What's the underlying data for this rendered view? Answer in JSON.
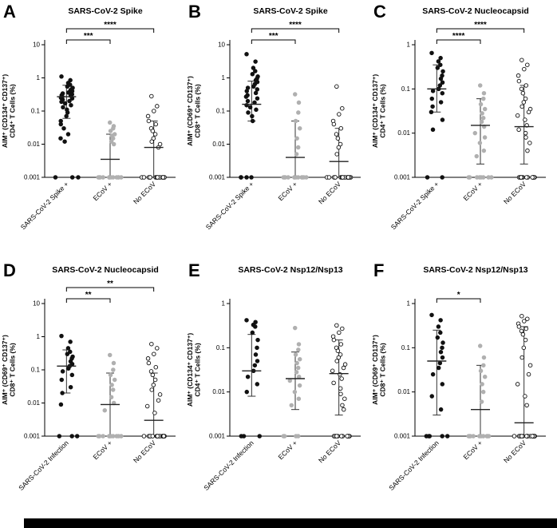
{
  "layout": {
    "background": "#ffffff"
  },
  "marker_colors": {
    "black": "#111111",
    "gray": "#b0b0b0",
    "white": "#ffffff"
  },
  "chart_data": [
    {
      "panel_label": "A",
      "title": "SARS-CoV-2 Spike",
      "type": "scatter",
      "yscale": "log",
      "ylim": [
        0.001,
        10
      ],
      "yticks": [
        0.001,
        0.01,
        0.1,
        1,
        10
      ],
      "ylabel_line1": "AIM⁺ (CD134⁺ CD137⁺)",
      "ylabel_line2": "CD4⁺ T Cells (%)",
      "groups": [
        {
          "label": "SARS-CoV-2 Spike +",
          "marker": "black",
          "median": 0.27,
          "lo": 0.06,
          "hi": 0.6,
          "values": [
            1.1,
            0.85,
            0.7,
            0.62,
            0.55,
            0.5,
            0.46,
            0.43,
            0.4,
            0.38,
            0.36,
            0.34,
            0.32,
            0.3,
            0.29,
            0.27,
            0.25,
            0.24,
            0.22,
            0.2,
            0.19,
            0.17,
            0.15,
            0.13,
            0.11,
            0.09,
            0.07,
            0.05,
            0.04,
            0.03,
            0.02,
            0.015,
            0.012,
            0.001,
            0.001,
            0.001
          ]
        },
        {
          "label": "ECoV +",
          "marker": "gray",
          "median": 0.0035,
          "lo": 0.001,
          "hi": 0.02,
          "values": [
            0.045,
            0.035,
            0.03,
            0.025,
            0.02,
            0.018,
            0.015,
            0.012,
            0.01,
            0.001,
            0.001,
            0.001,
            0.001,
            0.001,
            0.001,
            0.001,
            0.001,
            0.001,
            0.001,
            0.001,
            0.001
          ]
        },
        {
          "label": "No ECoV",
          "marker": "open",
          "median": 0.008,
          "lo": 0.001,
          "hi": 0.05,
          "values": [
            0.28,
            0.14,
            0.1,
            0.07,
            0.05,
            0.04,
            0.03,
            0.025,
            0.02,
            0.015,
            0.012,
            0.01,
            0.008,
            0.001,
            0.001,
            0.001,
            0.001,
            0.001,
            0.001,
            0.001,
            0.001,
            0.001,
            0.001,
            0.001,
            0.001,
            0.001,
            0.001,
            0.001,
            0.001
          ]
        }
      ],
      "significance": [
        {
          "from": 0,
          "to": 1,
          "label": "***"
        },
        {
          "from": 0,
          "to": 2,
          "label": "****"
        }
      ]
    },
    {
      "panel_label": "B",
      "title": "SARS-CoV-2 Spike",
      "type": "scatter",
      "yscale": "log",
      "ylim": [
        0.001,
        10
      ],
      "yticks": [
        0.001,
        0.01,
        0.1,
        1,
        10
      ],
      "ylabel_line1": "AIM⁺ (CD69⁺ CD137⁺)",
      "ylabel_line2": "CD8⁺ T Cells (%)",
      "groups": [
        {
          "label": "SARS-CoV-2 Spike +",
          "marker": "black",
          "median": 0.16,
          "lo": 0.05,
          "hi": 0.8,
          "values": [
            5.2,
            3.1,
            2.0,
            1.6,
            1.3,
            1.1,
            0.95,
            0.85,
            0.75,
            0.65,
            0.55,
            0.5,
            0.45,
            0.4,
            0.35,
            0.3,
            0.27,
            0.24,
            0.2,
            0.18,
            0.15,
            0.13,
            0.11,
            0.09,
            0.07,
            0.05,
            0.001,
            0.001,
            0.001,
            0.001
          ]
        },
        {
          "label": "ECoV +",
          "marker": "gray",
          "median": 0.004,
          "lo": 0.001,
          "hi": 0.05,
          "values": [
            0.32,
            0.18,
            0.09,
            0.05,
            0.03,
            0.015,
            0.008,
            0.005,
            0.001,
            0.001,
            0.001,
            0.001,
            0.001,
            0.001,
            0.001,
            0.001,
            0.001,
            0.001,
            0.001,
            0.001
          ]
        },
        {
          "label": "No ECoV",
          "marker": "open",
          "median": 0.003,
          "lo": 0.001,
          "hi": 0.03,
          "values": [
            0.55,
            0.12,
            0.08,
            0.05,
            0.04,
            0.03,
            0.02,
            0.015,
            0.01,
            0.008,
            0.005,
            0.001,
            0.001,
            0.001,
            0.001,
            0.001,
            0.001,
            0.001,
            0.001,
            0.001,
            0.001,
            0.001,
            0.001,
            0.001,
            0.001,
            0.001,
            0.001,
            0.001,
            0.001
          ]
        }
      ],
      "significance": [
        {
          "from": 0,
          "to": 1,
          "label": "***"
        },
        {
          "from": 0,
          "to": 2,
          "label": "****"
        }
      ]
    },
    {
      "panel_label": "C",
      "title": "SARS-CoV-2 Nucleocapsid",
      "type": "scatter",
      "yscale": "log",
      "ylim": [
        0.001,
        1
      ],
      "yticks": [
        0.001,
        0.01,
        0.1,
        1
      ],
      "ylabel_line1": "AIM⁺ (CD134⁺ CD137⁺)",
      "ylabel_line2": "CD4⁺ T Cells (%)",
      "groups": [
        {
          "label": "SARS-CoV-2 Spike +",
          "marker": "black",
          "median": 0.1,
          "lo": 0.03,
          "hi": 0.35,
          "values": [
            0.65,
            0.5,
            0.42,
            0.35,
            0.3,
            0.25,
            0.2,
            0.17,
            0.14,
            0.12,
            0.1,
            0.09,
            0.08,
            0.06,
            0.05,
            0.04,
            0.03,
            0.02,
            0.012,
            0.001,
            0.001
          ]
        },
        {
          "label": "ECoV +",
          "marker": "gray",
          "median": 0.015,
          "lo": 0.002,
          "hi": 0.06,
          "values": [
            0.12,
            0.08,
            0.06,
            0.045,
            0.035,
            0.028,
            0.022,
            0.018,
            0.014,
            0.01,
            0.008,
            0.006,
            0.004,
            0.003,
            0.001,
            0.001,
            0.001,
            0.001,
            0.001,
            0.001,
            0.001,
            0.001
          ]
        },
        {
          "label": "No ECoV",
          "marker": "open",
          "median": 0.014,
          "lo": 0.002,
          "hi": 0.12,
          "values": [
            0.45,
            0.35,
            0.28,
            0.2,
            0.15,
            0.12,
            0.1,
            0.08,
            0.06,
            0.05,
            0.04,
            0.035,
            0.03,
            0.025,
            0.02,
            0.015,
            0.012,
            0.01,
            0.008,
            0.006,
            0.004,
            0.001,
            0.001,
            0.001,
            0.001,
            0.001,
            0.001,
            0.001,
            0.001,
            0.001,
            0.001,
            0.001,
            0.001,
            0.001,
            0.001
          ]
        }
      ],
      "significance": [
        {
          "from": 0,
          "to": 1,
          "label": "****"
        },
        {
          "from": 0,
          "to": 2,
          "label": "****"
        }
      ]
    },
    {
      "panel_label": "D",
      "title": "SARS-CoV-2 Nucleocapsid",
      "type": "scatter",
      "yscale": "log",
      "ylim": [
        0.001,
        10
      ],
      "yticks": [
        0.001,
        0.01,
        0.1,
        1,
        10
      ],
      "ylabel_line1": "AIM⁺ (CD69⁺ CD137⁺)",
      "ylabel_line2": "CD8⁺ T Cells (%)",
      "groups": [
        {
          "label": "SARS-CoV-2 Infection",
          "marker": "black",
          "median": 0.13,
          "lo": 0.02,
          "hi": 0.4,
          "values": [
            1.05,
            0.7,
            0.45,
            0.35,
            0.3,
            0.25,
            0.22,
            0.18,
            0.15,
            0.13,
            0.11,
            0.09,
            0.07,
            0.05,
            0.03,
            0.02,
            0.009,
            0.001,
            0.001,
            0.001
          ]
        },
        {
          "label": "ECoV +",
          "marker": "gray",
          "median": 0.009,
          "lo": 0.001,
          "hi": 0.08,
          "values": [
            0.28,
            0.16,
            0.1,
            0.07,
            0.05,
            0.035,
            0.025,
            0.015,
            0.01,
            0.006,
            0.001,
            0.001,
            0.001,
            0.001,
            0.001,
            0.001,
            0.001,
            0.001,
            0.001,
            0.001
          ]
        },
        {
          "label": "No ECoV",
          "marker": "open",
          "median": 0.003,
          "lo": 0.001,
          "hi": 0.08,
          "values": [
            0.6,
            0.45,
            0.3,
            0.22,
            0.16,
            0.12,
            0.09,
            0.07,
            0.05,
            0.035,
            0.025,
            0.018,
            0.012,
            0.008,
            0.005,
            0.001,
            0.001,
            0.001,
            0.001,
            0.001,
            0.001,
            0.001,
            0.001,
            0.001,
            0.001,
            0.001,
            0.001,
            0.001,
            0.001,
            0.001,
            0.001
          ]
        }
      ],
      "significance": [
        {
          "from": 0,
          "to": 1,
          "label": "**"
        },
        {
          "from": 0,
          "to": 2,
          "label": "**"
        }
      ]
    },
    {
      "panel_label": "E",
      "title": "SARS-CoV-2 Nsp12/Nsp13",
      "type": "scatter",
      "yscale": "log",
      "ylim": [
        0.001,
        1
      ],
      "yticks": [
        0.001,
        0.01,
        0.1,
        1
      ],
      "ylabel_line1": "AIM⁺ (CD134⁺ CD137⁺)",
      "ylabel_line2": "CD4⁺ T Cells (%)",
      "groups": [
        {
          "label": "SARS-CoV-2 Infection",
          "marker": "black",
          "median": 0.03,
          "lo": 0.008,
          "hi": 0.2,
          "values": [
            0.42,
            0.38,
            0.33,
            0.3,
            0.22,
            0.15,
            0.1,
            0.07,
            0.05,
            0.04,
            0.03,
            0.022,
            0.015,
            0.01,
            0.001,
            0.001,
            0.001
          ]
        },
        {
          "label": "ECoV +",
          "marker": "gray",
          "median": 0.02,
          "lo": 0.004,
          "hi": 0.08,
          "values": [
            0.28,
            0.12,
            0.09,
            0.07,
            0.055,
            0.045,
            0.035,
            0.028,
            0.022,
            0.018,
            0.014,
            0.01,
            0.007,
            0.005,
            0.001,
            0.001,
            0.001,
            0.001
          ]
        },
        {
          "label": "No ECoV",
          "marker": "open",
          "median": 0.026,
          "lo": 0.003,
          "hi": 0.15,
          "values": [
            0.32,
            0.27,
            0.22,
            0.18,
            0.15,
            0.12,
            0.1,
            0.085,
            0.07,
            0.06,
            0.05,
            0.042,
            0.035,
            0.03,
            0.025,
            0.02,
            0.016,
            0.012,
            0.009,
            0.007,
            0.005,
            0.004,
            0.001,
            0.001,
            0.001,
            0.001,
            0.001,
            0.001,
            0.001,
            0.001,
            0.001,
            0.001,
            0.001,
            0.001
          ]
        }
      ],
      "significance": []
    },
    {
      "panel_label": "F",
      "title": "SARS-CoV-2 Nsp12/Nsp13",
      "type": "scatter",
      "yscale": "log",
      "ylim": [
        0.001,
        1
      ],
      "yticks": [
        0.001,
        0.01,
        0.1,
        1
      ],
      "ylabel_line1": "AIM⁺ (CD69⁺ CD137⁺)",
      "ylabel_line2": "CD8⁺ T Cells (%)",
      "groups": [
        {
          "label": "SARS-CoV-2 Infection",
          "marker": "black",
          "median": 0.05,
          "lo": 0.003,
          "hi": 0.25,
          "values": [
            0.55,
            0.42,
            0.3,
            0.22,
            0.17,
            0.13,
            0.1,
            0.08,
            0.06,
            0.045,
            0.035,
            0.025,
            0.015,
            0.008,
            0.004,
            0.001,
            0.001,
            0.001,
            0.001,
            0.001
          ]
        },
        {
          "label": "ECoV +",
          "marker": "gray",
          "median": 0.004,
          "lo": 0.001,
          "hi": 0.04,
          "values": [
            0.11,
            0.06,
            0.04,
            0.03,
            0.022,
            0.015,
            0.01,
            0.006,
            0.001,
            0.001,
            0.001,
            0.001,
            0.001,
            0.001,
            0.001,
            0.001,
            0.001,
            0.001
          ]
        },
        {
          "label": "No ECoV",
          "marker": "open",
          "median": 0.002,
          "lo": 0.001,
          "hi": 0.3,
          "values": [
            0.52,
            0.45,
            0.4,
            0.35,
            0.3,
            0.27,
            0.24,
            0.2,
            0.15,
            0.1,
            0.06,
            0.04,
            0.025,
            0.015,
            0.008,
            0.005,
            0.001,
            0.001,
            0.001,
            0.001,
            0.001,
            0.001,
            0.001,
            0.001,
            0.001,
            0.001,
            0.001,
            0.001,
            0.001,
            0.001,
            0.001,
            0.001,
            0.001,
            0.001
          ]
        }
      ],
      "significance": [
        {
          "from": 0,
          "to": 1,
          "label": "*"
        }
      ]
    }
  ]
}
